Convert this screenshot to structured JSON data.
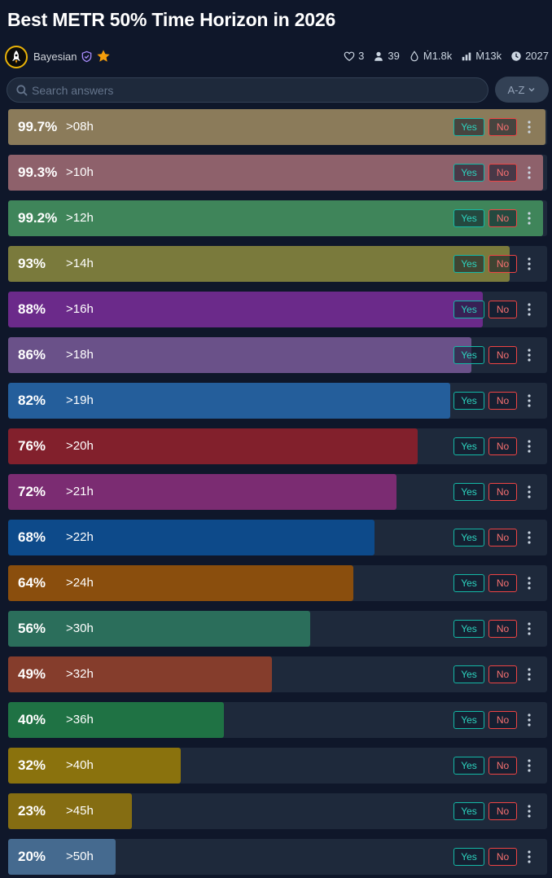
{
  "title": "Best METR 50% Time Horizon in 2026",
  "author": {
    "name": "Bayesian",
    "badges": [
      "shield-check-icon",
      "star-icon"
    ]
  },
  "stats": {
    "likes": "3",
    "traders": "39",
    "liquidity": "Ṁ1.8k",
    "volume": "Ṁ13k",
    "close": "2027"
  },
  "search": {
    "placeholder": "Search answers"
  },
  "sort": {
    "label": "A-Z"
  },
  "buttons": {
    "yes": "Yes",
    "no": "No"
  },
  "answers": [
    {
      "prob": "99.7%",
      "label": ">08h",
      "value": 99.7,
      "color": "#8b7b5a"
    },
    {
      "prob": "99.3%",
      "label": ">10h",
      "value": 99.3,
      "color": "#8e616b"
    },
    {
      "prob": "99.2%",
      "label": ">12h",
      "value": 99.2,
      "color": "#3f855a"
    },
    {
      "prob": "93%",
      "label": ">14h",
      "value": 93,
      "color": "#7a7a3c"
    },
    {
      "prob": "88%",
      "label": ">16h",
      "value": 88,
      "color": "#6b2a8a"
    },
    {
      "prob": "86%",
      "label": ">18h",
      "value": 86,
      "color": "#6a5189"
    },
    {
      "prob": "82%",
      "label": ">19h",
      "value": 82,
      "color": "#245e9b"
    },
    {
      "prob": "76%",
      "label": ">20h",
      "value": 76,
      "color": "#82202c"
    },
    {
      "prob": "72%",
      "label": ">21h",
      "value": 72,
      "color": "#7b2c72"
    },
    {
      "prob": "68%",
      "label": ">22h",
      "value": 68,
      "color": "#0d4a8a"
    },
    {
      "prob": "64%",
      "label": ">24h",
      "value": 64,
      "color": "#8a4e0d"
    },
    {
      "prob": "56%",
      "label": ">30h",
      "value": 56,
      "color": "#2b6e5b"
    },
    {
      "prob": "49%",
      "label": ">32h",
      "value": 49,
      "color": "#853d2c"
    },
    {
      "prob": "40%",
      "label": ">36h",
      "value": 40,
      "color": "#1f7244"
    },
    {
      "prob": "32%",
      "label": ">40h",
      "value": 32,
      "color": "#8a720d"
    },
    {
      "prob": "23%",
      "label": ">45h",
      "value": 23,
      "color": "#856d12"
    },
    {
      "prob": "20%",
      "label": ">50h",
      "value": 20,
      "color": "#456a8f"
    }
  ]
}
